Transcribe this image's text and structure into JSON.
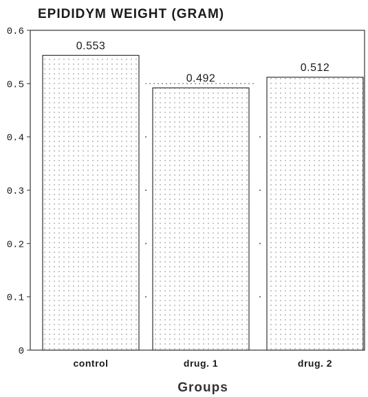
{
  "chart_data": {
    "type": "bar",
    "title": "EPIDIDYM WEIGHT (GRAM)",
    "xlabel": "Groups",
    "ylabel": "",
    "categories": [
      "control",
      "drug. 1",
      "drug. 2"
    ],
    "values": [
      0.553,
      0.492,
      0.512
    ],
    "data_labels": [
      "0.553",
      "0.492",
      "0.512"
    ],
    "ylim": [
      0,
      0.6
    ],
    "yticks": [
      0,
      0.1,
      0.2,
      0.3,
      0.4,
      0.5,
      0.6
    ],
    "ytick_labels": [
      "0",
      "0.1",
      "0.2",
      "0.3",
      "0.4",
      "0.5",
      "0.6"
    ],
    "grid": false,
    "legend": "none",
    "bar_fill": "stippled-white",
    "colors": {
      "bar_fill": "#ffffff",
      "bar_stroke": "#333333",
      "stipple": "#777777",
      "text": "#1a1a1a"
    }
  }
}
